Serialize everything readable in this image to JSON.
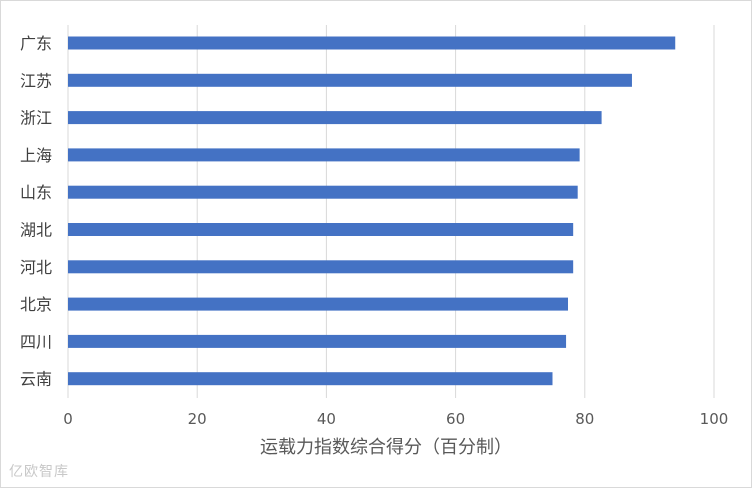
{
  "chart_data": {
    "type": "bar",
    "orientation": "horizontal",
    "categories": [
      "广东",
      "江苏",
      "浙江",
      "上海",
      "山东",
      "湖北",
      "河北",
      "北京",
      "四川",
      "云南"
    ],
    "values": [
      94,
      87.3,
      82.6,
      79.2,
      78.9,
      78.2,
      78.2,
      77.4,
      77.1,
      75
    ],
    "xlabel": "运载力指数综合得分（百分制）",
    "ylabel": "",
    "title": "",
    "xlim": [
      0,
      100
    ],
    "xticks": [
      "0",
      "20",
      "40",
      "60",
      "80",
      "100"
    ],
    "grid": true,
    "bar_color": "#4472c4",
    "grid_color": "#d9d9d9"
  },
  "watermark": "亿欧智库"
}
